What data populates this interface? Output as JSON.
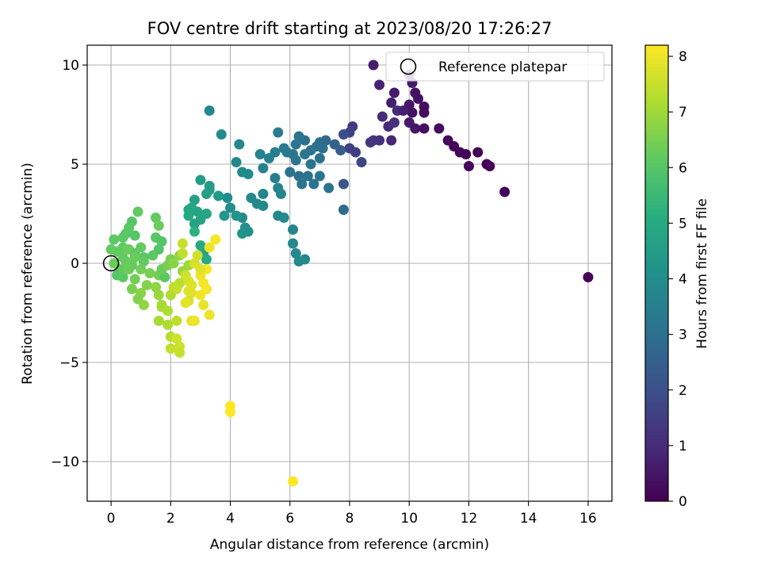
{
  "chart_data": {
    "type": "scatter",
    "title": "FOV centre drift starting at 2023/08/20 17:26:27",
    "xlabel": "Angular distance from reference (arcmin)",
    "ylabel": "Rotation from reference (arcmin)",
    "xlim": [
      -0.8,
      16.8
    ],
    "ylim": [
      -12,
      11
    ],
    "xticks": [
      0,
      2,
      4,
      6,
      8,
      10,
      12,
      14,
      16
    ],
    "yticks": [
      -10,
      -5,
      0,
      5,
      10
    ],
    "grid": true,
    "legend": {
      "position": "top-right",
      "entries": [
        "Reference platepar"
      ]
    },
    "colorbar": {
      "label": "Hours from first FF file",
      "range": [
        0,
        8.2
      ],
      "ticks": [
        0,
        1,
        2,
        3,
        4,
        5,
        6,
        7,
        8
      ],
      "colormap": "viridis"
    },
    "reference_point": {
      "x": 0,
      "y": 0
    },
    "series": [
      {
        "name": "",
        "columns": [
          "x",
          "y",
          "hours"
        ],
        "points": [
          [
            16.0,
            -0.7,
            0.05
          ],
          [
            8.8,
            10.0,
            0.7
          ],
          [
            10.0,
            9.5,
            0.5
          ],
          [
            10.1,
            9.1,
            0.6
          ],
          [
            9.0,
            9.0,
            0.8
          ],
          [
            9.5,
            8.6,
            0.6
          ],
          [
            10.2,
            8.6,
            0.4
          ],
          [
            10.5,
            7.9,
            0.3
          ],
          [
            10.5,
            7.6,
            0.25
          ],
          [
            10.1,
            7.6,
            0.4
          ],
          [
            9.4,
            8.1,
            0.7
          ],
          [
            9.6,
            7.7,
            1.0
          ],
          [
            9.1,
            7.4,
            1.0
          ],
          [
            9.3,
            6.9,
            1.0
          ],
          [
            9.5,
            7.1,
            1.1
          ],
          [
            10.0,
            7.1,
            0.6
          ],
          [
            10.2,
            6.8,
            0.5
          ],
          [
            10.5,
            6.8,
            0.3
          ],
          [
            11.0,
            6.8,
            0.2
          ],
          [
            11.3,
            6.2,
            0.2
          ],
          [
            11.5,
            5.9,
            0.15
          ],
          [
            11.7,
            5.6,
            0.15
          ],
          [
            11.9,
            5.5,
            0.1
          ],
          [
            12.0,
            4.9,
            0.1
          ],
          [
            12.3,
            5.6,
            0.1
          ],
          [
            12.6,
            5.0,
            0.05
          ],
          [
            12.7,
            4.9,
            0.05
          ],
          [
            13.2,
            3.6,
            0.05
          ],
          [
            10.0,
            8.0,
            0.5
          ],
          [
            10.3,
            8.3,
            0.4
          ],
          [
            9.0,
            6.2,
            1.1
          ],
          [
            8.8,
            6.2,
            1.2
          ],
          [
            8.7,
            6.1,
            1.3
          ],
          [
            9.4,
            6.2,
            0.9
          ],
          [
            9.8,
            7.7,
            0.7
          ],
          [
            8.1,
            6.9,
            1.4
          ],
          [
            8.0,
            6.6,
            1.6
          ],
          [
            7.8,
            6.5,
            1.9
          ],
          [
            8.0,
            5.8,
            1.6
          ],
          [
            8.2,
            5.6,
            1.5
          ],
          [
            8.4,
            5.1,
            1.7
          ],
          [
            7.8,
            4.0,
            2.2
          ],
          [
            7.7,
            5.7,
            2.4
          ],
          [
            7.5,
            6.0,
            2.6
          ],
          [
            7.2,
            6.2,
            2.8
          ],
          [
            7.0,
            6.1,
            2.9
          ],
          [
            6.9,
            5.9,
            3.0
          ],
          [
            6.7,
            5.7,
            3.1
          ],
          [
            6.5,
            6.2,
            3.0
          ],
          [
            6.3,
            6.4,
            3.1
          ],
          [
            6.2,
            6.0,
            3.2
          ],
          [
            6.1,
            5.5,
            3.2
          ],
          [
            5.9,
            5.6,
            3.3
          ],
          [
            5.8,
            5.8,
            3.3
          ],
          [
            6.0,
            4.6,
            3.1
          ],
          [
            6.3,
            4.4,
            3.0
          ],
          [
            6.4,
            4.0,
            3.1
          ],
          [
            6.6,
            4.4,
            3.1
          ],
          [
            6.8,
            4.0,
            3.1
          ],
          [
            7.0,
            4.4,
            3.2
          ],
          [
            7.1,
            5.8,
            3.0
          ],
          [
            7.3,
            3.8,
            3.2
          ],
          [
            7.8,
            2.7,
            2.9
          ],
          [
            7.0,
            5.3,
            3.0
          ],
          [
            6.7,
            5.0,
            3.1
          ],
          [
            6.5,
            5.5,
            3.2
          ],
          [
            6.2,
            5.2,
            3.2
          ],
          [
            5.6,
            6.6,
            3.4
          ],
          [
            5.5,
            5.6,
            3.5
          ],
          [
            5.3,
            5.3,
            3.6
          ],
          [
            5.0,
            5.5,
            3.6
          ],
          [
            5.1,
            4.8,
            3.6
          ],
          [
            5.1,
            3.5,
            3.7
          ],
          [
            5.5,
            4.3,
            3.5
          ],
          [
            5.6,
            3.8,
            3.7
          ],
          [
            5.7,
            3.5,
            3.7
          ],
          [
            4.7,
            3.3,
            3.8
          ],
          [
            4.9,
            3.0,
            3.9
          ],
          [
            5.1,
            2.9,
            3.9
          ],
          [
            5.6,
            2.4,
            3.8
          ],
          [
            5.8,
            2.3,
            3.8
          ],
          [
            6.1,
            1.7,
            3.7
          ],
          [
            6.1,
            1.0,
            3.8
          ],
          [
            6.2,
            0.5,
            3.8
          ],
          [
            6.3,
            0.1,
            3.8
          ],
          [
            6.5,
            0.2,
            3.8
          ],
          [
            4.4,
            2.3,
            3.9
          ],
          [
            4.5,
            1.8,
            4.1
          ],
          [
            4.6,
            1.6,
            4.1
          ],
          [
            4.4,
            1.5,
            4.2
          ],
          [
            4.2,
            5.1,
            3.8
          ],
          [
            4.3,
            6.0,
            3.8
          ],
          [
            4.4,
            4.6,
            3.9
          ],
          [
            4.6,
            4.5,
            3.9
          ],
          [
            3.7,
            6.5,
            3.9
          ],
          [
            3.3,
            7.7,
            3.8
          ],
          [
            3.9,
            3.3,
            4.0
          ],
          [
            4.0,
            2.8,
            4.0
          ],
          [
            4.2,
            2.4,
            4.2
          ],
          [
            3.8,
            2.4,
            4.3
          ],
          [
            3.6,
            3.4,
            4.4
          ],
          [
            3.3,
            3.7,
            4.5
          ],
          [
            3.0,
            4.2,
            4.5
          ],
          [
            3.3,
            3.9,
            4.5
          ],
          [
            3.2,
            3.5,
            4.6
          ],
          [
            2.8,
            3.2,
            4.7
          ],
          [
            2.7,
            2.8,
            4.8
          ],
          [
            2.9,
            2.6,
            4.8
          ],
          [
            3.0,
            2.2,
            4.8
          ],
          [
            2.6,
            2.7,
            4.9
          ],
          [
            2.6,
            2.4,
            4.9
          ],
          [
            2.8,
            2.0,
            4.7
          ],
          [
            3.2,
            2.5,
            4.8
          ],
          [
            3.1,
            0.5,
            4.7
          ],
          [
            3.2,
            0.2,
            5.0
          ],
          [
            3.0,
            0.9,
            5.0
          ],
          [
            2.8,
            1.6,
            5.2
          ],
          [
            0.9,
            2.6,
            6.2
          ],
          [
            0.7,
            2.1,
            6.0
          ],
          [
            0.6,
            1.8,
            6.1
          ],
          [
            0.5,
            1.5,
            6.0
          ],
          [
            0.8,
            1.4,
            6.0
          ],
          [
            0.4,
            1.3,
            6.1
          ],
          [
            0.1,
            1.2,
            6.1
          ],
          [
            0.4,
            0.8,
            6.2
          ],
          [
            0.6,
            0.7,
            6.3
          ],
          [
            0.8,
            0.5,
            6.1
          ],
          [
            1.0,
            0.8,
            6.2
          ],
          [
            1.1,
            0.3,
            6.0
          ],
          [
            1.5,
            2.3,
            6.2
          ],
          [
            1.6,
            1.9,
            6.3
          ],
          [
            1.5,
            1.3,
            6.1
          ],
          [
            1.7,
            1.1,
            6.0
          ],
          [
            1.6,
            0.7,
            6.0
          ],
          [
            1.4,
            0.4,
            6.1
          ],
          [
            1.1,
            0.1,
            6.2
          ],
          [
            0.8,
            0.3,
            6.3
          ],
          [
            0.7,
            -0.1,
            6.2
          ],
          [
            0.5,
            0.1,
            6.3
          ],
          [
            0.3,
            -0.3,
            6.2
          ],
          [
            0.2,
            -0.6,
            6.0
          ],
          [
            0.4,
            -0.7,
            6.1
          ],
          [
            0.6,
            -0.3,
            6.3
          ],
          [
            0.8,
            -0.8,
            6.4
          ],
          [
            1.0,
            -0.3,
            6.4
          ],
          [
            1.3,
            -0.5,
            6.5
          ],
          [
            1.6,
            -0.6,
            6.4
          ],
          [
            1.8,
            -0.7,
            6.1
          ],
          [
            1.7,
            -0.3,
            6.3
          ],
          [
            1.9,
            -0.1,
            6.5
          ],
          [
            2.0,
            0.2,
            6.5
          ],
          [
            0.0,
            0.7,
            6.2
          ],
          [
            0.2,
            0.6,
            6.2
          ],
          [
            0.1,
            0.0,
            6.3
          ],
          [
            0.4,
            0.3,
            6.2
          ],
          [
            2.1,
            0.0,
            6.7
          ],
          [
            2.3,
            0.4,
            6.8
          ],
          [
            2.6,
            -0.1,
            7.0
          ],
          [
            2.4,
            -0.4,
            6.9
          ],
          [
            1.2,
            -1.1,
            6.6
          ],
          [
            1.0,
            -1.5,
            6.7
          ],
          [
            0.9,
            -1.8,
            6.6
          ],
          [
            1.1,
            -2.1,
            6.8
          ],
          [
            0.7,
            -1.3,
            6.5
          ],
          [
            1.5,
            -1.2,
            6.8
          ],
          [
            1.6,
            -1.6,
            6.9
          ],
          [
            1.7,
            -2.2,
            7.1
          ],
          [
            1.6,
            -2.9,
            7.1
          ],
          [
            1.7,
            -2.1,
            7.1
          ],
          [
            1.9,
            -2.4,
            7.2
          ],
          [
            1.9,
            -3.1,
            7.2
          ],
          [
            2.2,
            -2.9,
            7.4
          ],
          [
            2.0,
            -3.7,
            7.3
          ],
          [
            2.0,
            -4.3,
            7.4
          ],
          [
            2.3,
            -4.2,
            7.6
          ],
          [
            2.3,
            -4.5,
            7.5
          ],
          [
            2.2,
            -3.8,
            7.6
          ],
          [
            2.3,
            -1.0,
            7.3
          ],
          [
            2.1,
            -1.2,
            7.4
          ],
          [
            2.0,
            -1.6,
            7.2
          ],
          [
            2.2,
            -1.3,
            7.5
          ],
          [
            2.5,
            -0.6,
            7.6
          ],
          [
            2.6,
            -0.9,
            7.7
          ],
          [
            2.7,
            -1.1,
            7.8
          ],
          [
            2.7,
            -1.5,
            7.8
          ],
          [
            2.6,
            -1.9,
            7.7
          ],
          [
            2.7,
            -2.9,
            7.9
          ],
          [
            2.8,
            -2.9,
            8.0
          ],
          [
            3.1,
            -2.1,
            7.9
          ],
          [
            3.3,
            -2.6,
            8.0
          ],
          [
            3.0,
            -1.6,
            8.0
          ],
          [
            3.2,
            -1.3,
            8.1
          ],
          [
            3.1,
            -1.0,
            8.1
          ],
          [
            3.0,
            -0.6,
            8.0
          ],
          [
            3.2,
            -0.3,
            8.1
          ],
          [
            3.3,
            0.8,
            8.0
          ],
          [
            3.5,
            1.2,
            8.1
          ],
          [
            2.4,
            1.0,
            7.5
          ],
          [
            2.4,
            0.5,
            7.4
          ],
          [
            2.9,
            0.4,
            7.6
          ],
          [
            2.8,
            0.0,
            7.7
          ],
          [
            3.0,
            -0.3,
            7.8
          ],
          [
            2.5,
            -2.0,
            7.9
          ],
          [
            2.6,
            -1.4,
            7.8
          ],
          [
            4.0,
            -7.2,
            8.2
          ],
          [
            4.0,
            -7.5,
            8.2
          ],
          [
            6.1,
            -11.0,
            8.2
          ]
        ]
      }
    ]
  }
}
